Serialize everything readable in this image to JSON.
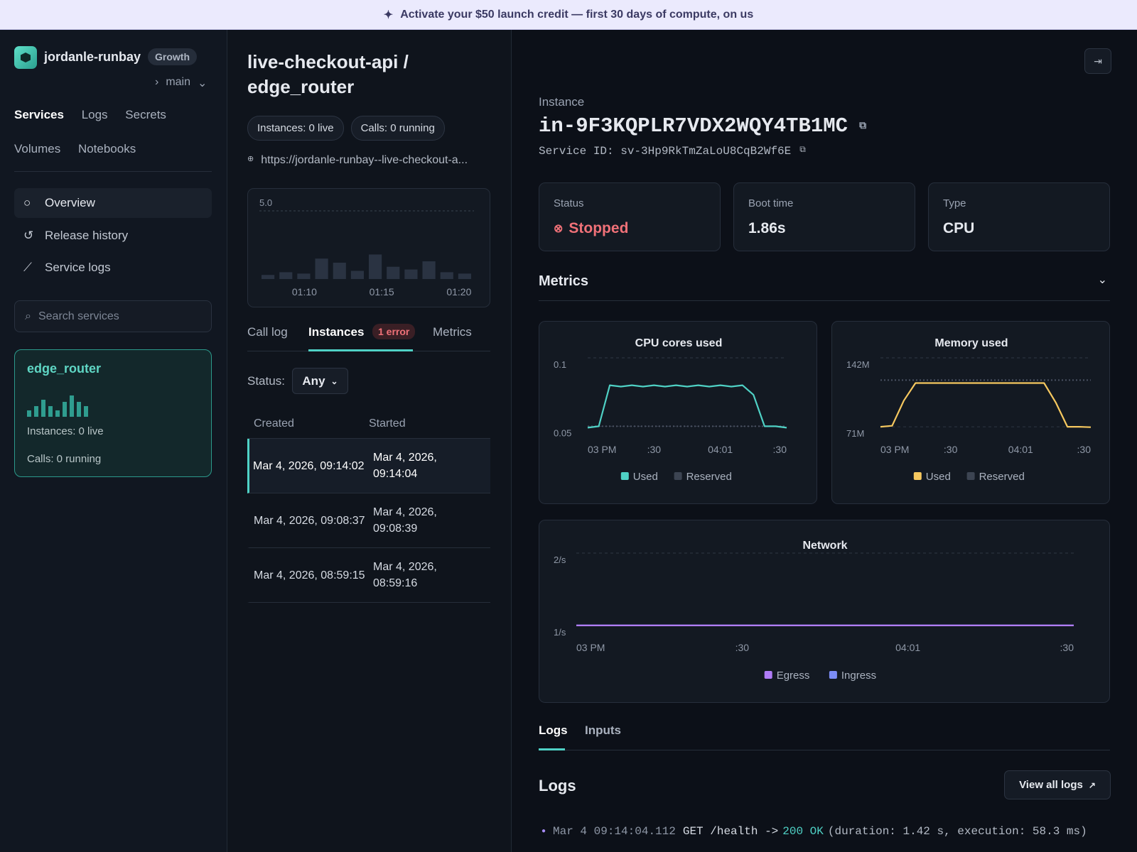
{
  "banner": {
    "text": "Activate your $50 launch credit — first 30 days of compute, on us"
  },
  "sidebar": {
    "workspace": "jordanle-runbay",
    "plan": "Growth",
    "branch": "main",
    "nav": [
      "Services",
      "Logs",
      "Secrets",
      "Volumes",
      "Notebooks"
    ],
    "menu": [
      "Overview",
      "Release history",
      "Service logs"
    ],
    "search_placeholder": "Search services",
    "service_card": {
      "name": "edge_router",
      "activity": {
        "type": "bar",
        "color": "#2f9d8f",
        "values": [
          3,
          5,
          8,
          5,
          3,
          7,
          10,
          7,
          5
        ]
      },
      "instances": "Instances: 0 live",
      "calls": "Calls: 0 running"
    }
  },
  "middle": {
    "title_app": "live-checkout-api /",
    "title_function": "edge_router",
    "badges": [
      "Instances: 0 live",
      "Calls: 0 running"
    ],
    "url": "https://jordanle-runbay--live-checkout-a...",
    "call_chart": {
      "type": "bar",
      "color": "#2a3342",
      "values": [
        0.3,
        0.5,
        0.4,
        1.5,
        1.2,
        0.6,
        1.8,
        0.9,
        0.7,
        1.3,
        0.5,
        0.4
      ],
      "ylim": [
        0,
        5
      ],
      "yticks": [
        {
          "value": 5,
          "label": "5.0"
        }
      ],
      "grid": true,
      "x_labels": [
        "01:10",
        "01:15",
        "01:20"
      ]
    },
    "tabs": [
      "Call log",
      "Instances",
      "Metrics"
    ],
    "active_tab": "Instances",
    "error_badge": "1 error",
    "filter_label": "Status:",
    "filter_value": "Any",
    "table": {
      "columns": [
        "Created",
        "Started"
      ],
      "rows": [
        [
          "Mar 4, 2026, 09:14:02",
          "Mar 4, 2026, 09:14:04"
        ],
        [
          "Mar 4, 2026, 09:08:37",
          "Mar 4, 2026, 09:08:39"
        ],
        [
          "Mar 4, 2026, 08:59:15",
          "Mar 4, 2026, 08:59:16"
        ]
      ]
    }
  },
  "instance": {
    "label": "Instance",
    "id": "in-9F3KQPLR7VDX2WQY4TB1MC",
    "service_id": "Service ID: sv-3Hp9RkTmZaLoU8CqB2Wf6E",
    "stats": [
      {
        "label": "Status",
        "value": "Stopped"
      },
      {
        "label": "Boot time",
        "value": "1.86s"
      },
      {
        "label": "Type",
        "value": "CPU"
      }
    ],
    "metrics_title": "Metrics",
    "charts": [
      {
        "type": "line",
        "title": "CPU cores used",
        "ylim": [
          0.044,
          0.1
        ],
        "yticks": [
          0.05,
          0.1
        ],
        "grid": true,
        "categories": [
          "03 PM",
          null,
          null,
          null,
          null,
          null,
          ":30",
          null,
          null,
          null,
          null,
          null,
          "04:01",
          null,
          null,
          null,
          null,
          null,
          ":30"
        ],
        "series": [
          {
            "name": "Used",
            "color": "#4fd1c5",
            "values": [
              0.049,
              0.05,
              0.08,
              0.079,
              0.08,
              0.079,
              0.08,
              0.079,
              0.08,
              0.079,
              0.08,
              0.079,
              0.08,
              0.079,
              0.08,
              0.073,
              0.05,
              0.05,
              0.049
            ]
          },
          {
            "name": "Reserved",
            "color": "#4a5262",
            "line_style": "dotted",
            "values": [
              0.05,
              0.05,
              0.05,
              0.05,
              0.05,
              0.05,
              0.05,
              0.05,
              0.05,
              0.05,
              0.05,
              0.05,
              0.05,
              0.05,
              0.05,
              0.05,
              0.05,
              0.05,
              0.05
            ]
          }
        ]
      },
      {
        "type": "line",
        "title": "Memory used",
        "ylim": [
          63000000,
          142000000
        ],
        "yticks": [
          {
            "value": 71000000,
            "label": "71M"
          },
          {
            "value": 142000000,
            "label": "142M"
          }
        ],
        "grid": true,
        "categories": [
          "03 PM",
          null,
          null,
          null,
          null,
          null,
          ":30",
          null,
          null,
          null,
          null,
          null,
          "04:01",
          null,
          null,
          null,
          null,
          null,
          ":30"
        ],
        "series": [
          {
            "name": "Used",
            "color": "#f6c85f",
            "values": [
              71000000,
              72000000,
              98000000,
              116000000,
              116000000,
              116000000,
              116000000,
              116000000,
              116000000,
              116000000,
              116000000,
              116000000,
              116000000,
              116000000,
              116000000,
              96000000,
              71000000,
              71000000,
              70500000
            ]
          },
          {
            "name": "Reserved",
            "color": "#4a5262",
            "line_style": "dotted",
            "values": [
              119000000,
              119000000,
              119000000,
              119000000,
              119000000,
              119000000,
              119000000,
              119000000,
              119000000,
              119000000,
              119000000,
              119000000,
              119000000,
              119000000,
              119000000,
              119000000,
              119000000,
              119000000,
              119000000
            ]
          }
        ]
      },
      {
        "type": "line",
        "title": "Network",
        "ylim": [
          0.92,
          2
        ],
        "yticks": [
          {
            "value": 1,
            "label": "1/s"
          },
          {
            "value": 2,
            "label": "2/s"
          }
        ],
        "grid": true,
        "categories": [
          "03 PM",
          null,
          null,
          null,
          null,
          null,
          ":30",
          null,
          null,
          null,
          null,
          null,
          "04:01",
          null,
          null,
          null,
          null,
          null,
          ":30"
        ],
        "series": [
          {
            "name": "Egress",
            "color": "#b07cf7",
            "values": [
              1,
              1,
              1,
              1,
              1,
              1,
              1,
              1,
              1,
              1,
              1,
              1,
              1,
              1,
              1,
              1,
              1,
              1,
              1
            ]
          },
          {
            "name": "Ingress",
            "color": "#7b8cf5",
            "values": [
              1,
              1,
              1,
              1,
              1,
              1,
              1,
              1,
              1,
              1,
              1,
              1,
              1,
              1,
              1,
              1,
              1,
              1,
              1
            ]
          }
        ]
      }
    ],
    "log_tabs": [
      "Logs",
      "Inputs"
    ],
    "logs_title": "Logs",
    "view_all": "View all logs",
    "log_line": {
      "time": "Mar 4 09:14:04.112",
      "request": "GET /health ->",
      "status": "200 OK",
      "detail": "(duration: 1.42 s, execution: 58.3 ms)"
    }
  }
}
